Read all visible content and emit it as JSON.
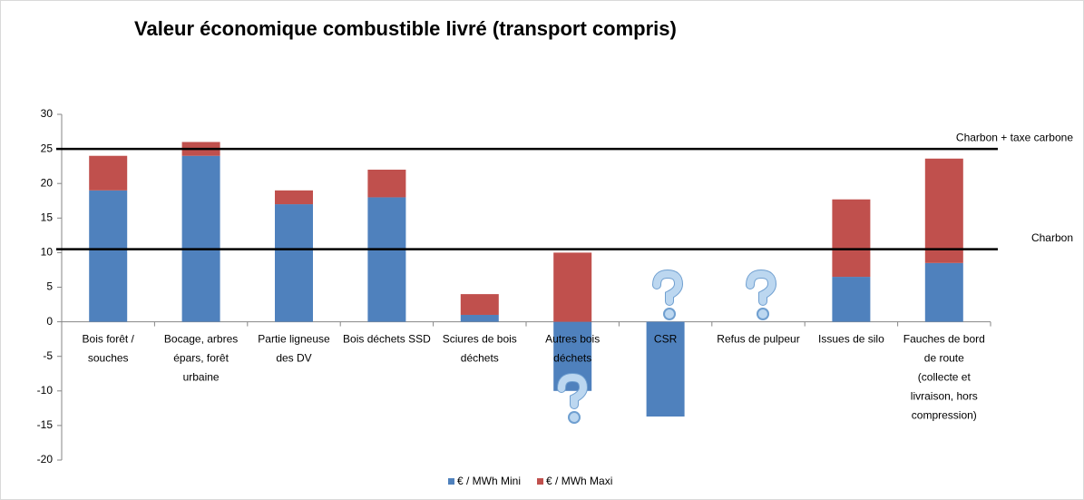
{
  "chart_data": {
    "type": "stacked_bar",
    "title": "Valeur économique combustible livré (transport compris)",
    "categories": [
      "Bois forêt / souches",
      "Bocage, arbres épars, forêt urbaine",
      "Partie ligneuse des DV",
      "Bois déchets SSD",
      "Sciures de bois déchets",
      "Autres bois déchets",
      "CSR",
      "Refus de pulpeur",
      "Issues de silo",
      "Fauches de bord de route (collecte et livraison, hors compression)"
    ],
    "series": [
      {
        "name": "€ / MWh Mini",
        "color": "#4f81bd",
        "values": [
          19,
          24,
          17,
          18,
          1,
          -10,
          -13.7,
          null,
          6.5,
          8.5
        ]
      },
      {
        "name": "€ / MWh Maxi",
        "color": "#c0504d",
        "values": [
          5,
          2,
          2,
          4,
          3,
          10,
          null,
          null,
          11.2,
          15.1
        ]
      }
    ],
    "reference_lines": [
      {
        "label": "Charbon + taxe carbone",
        "value": 25
      },
      {
        "label": "Charbon",
        "value": 10.5
      }
    ],
    "ylim": [
      -20,
      30
    ],
    "yticks": [
      -20,
      -15,
      -10,
      -5,
      0,
      5,
      10,
      15,
      20,
      25,
      30
    ],
    "legend": "bottom"
  }
}
